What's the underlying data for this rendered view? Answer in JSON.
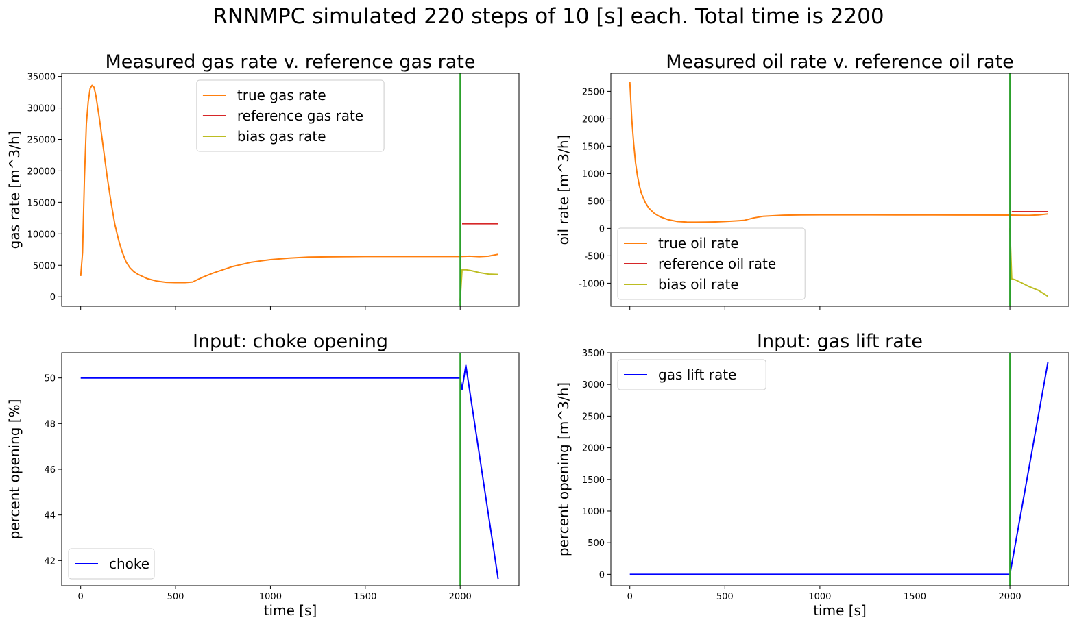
{
  "suptitle": "RNNMPC simulated 220 steps of 10 [s] each. Total time is 2200",
  "colors": {
    "true": "#ff7f0e",
    "reference": "#d62728",
    "bias": "#bcbd22",
    "input": "#0000ff",
    "marker": "#2ca02c"
  },
  "chart_data": [
    {
      "type": "line",
      "title": "Measured gas rate v. reference gas rate",
      "xlabel": "",
      "ylabel": "gas rate [m^3/h]",
      "xlim": [
        -100,
        2310
      ],
      "ylim": [
        -1500,
        35500
      ],
      "xticks": [
        0,
        500,
        1000,
        1500,
        2000
      ],
      "show_xticklabels": false,
      "yticks": [
        0,
        5000,
        10000,
        15000,
        20000,
        25000,
        30000,
        35000
      ],
      "vline": 2000,
      "legend_position": "top-center",
      "series": [
        {
          "name": "true gas rate",
          "color_key": "true",
          "x": [
            0,
            10,
            20,
            30,
            40,
            50,
            60,
            70,
            80,
            90,
            100,
            120,
            140,
            160,
            180,
            200,
            220,
            240,
            260,
            280,
            300,
            350,
            400,
            450,
            500,
            550,
            590,
            620,
            650,
            700,
            800,
            900,
            1000,
            1100,
            1200,
            1300,
            1400,
            1500,
            1600,
            1700,
            1800,
            1900,
            2000,
            2050,
            2100,
            2150,
            2200
          ],
          "y": [
            3300,
            7000,
            19000,
            27500,
            31000,
            33100,
            33600,
            33300,
            32000,
            30000,
            28000,
            23500,
            19000,
            15000,
            11500,
            9000,
            7000,
            5500,
            4600,
            4000,
            3600,
            2900,
            2500,
            2300,
            2250,
            2250,
            2350,
            2800,
            3200,
            3800,
            4800,
            5500,
            5900,
            6150,
            6300,
            6350,
            6380,
            6400,
            6400,
            6400,
            6400,
            6400,
            6400,
            6450,
            6380,
            6450,
            6750
          ]
        },
        {
          "name": "reference gas rate",
          "color_key": "reference",
          "x": [
            2010,
            2200
          ],
          "y": [
            11600,
            11600
          ]
        },
        {
          "name": "bias gas rate",
          "color_key": "bias",
          "x": [
            2000,
            2010,
            2030,
            2060,
            2100,
            2150,
            2200
          ],
          "y": [
            -600,
            4300,
            4300,
            4150,
            3850,
            3600,
            3550
          ]
        }
      ]
    },
    {
      "type": "line",
      "title": "Measured oil rate v. reference oil rate",
      "xlabel": "",
      "ylabel": "oil rate [m^3/h]",
      "xlim": [
        -100,
        2310
      ],
      "ylim": [
        -1420,
        2830
      ],
      "xticks": [
        0,
        500,
        1000,
        1500,
        2000
      ],
      "show_xticklabels": false,
      "yticks": [
        -1000,
        -500,
        0,
        500,
        1000,
        1500,
        2000,
        2500
      ],
      "vline": 2000,
      "legend_position": "bottom-left",
      "series": [
        {
          "name": "true oil rate",
          "color_key": "true",
          "x": [
            0,
            10,
            20,
            30,
            40,
            50,
            60,
            80,
            100,
            130,
            160,
            200,
            250,
            300,
            350,
            400,
            450,
            500,
            550,
            600,
            650,
            700,
            800,
            900,
            1000,
            1200,
            1400,
            1600,
            1800,
            2000,
            2050,
            2100,
            2150,
            2200
          ],
          "y": [
            2680,
            2000,
            1550,
            1200,
            960,
            780,
            650,
            480,
            370,
            270,
            210,
            160,
            125,
            115,
            112,
            114,
            118,
            125,
            135,
            145,
            190,
            220,
            240,
            245,
            248,
            248,
            246,
            245,
            244,
            243,
            240,
            238,
            245,
            265
          ]
        },
        {
          "name": "reference oil rate",
          "color_key": "reference",
          "x": [
            2010,
            2200
          ],
          "y": [
            305,
            305
          ]
        },
        {
          "name": "bias oil rate",
          "color_key": "bias",
          "x": [
            2000,
            2010,
            2030,
            2060,
            2100,
            2150,
            2200
          ],
          "y": [
            0,
            -920,
            -940,
            -990,
            -1060,
            -1130,
            -1240
          ]
        }
      ]
    },
    {
      "type": "line",
      "title": "Input: choke opening",
      "xlabel": "time [s]",
      "ylabel": "percent opening [%]",
      "xlim": [
        -100,
        2310
      ],
      "ylim": [
        40.9,
        51.1
      ],
      "xticks": [
        0,
        500,
        1000,
        1500,
        2000
      ],
      "show_xticklabels": true,
      "yticks": [
        42,
        44,
        46,
        48,
        50
      ],
      "vline": 2000,
      "legend_position": "bottom-left",
      "series": [
        {
          "name": "choke",
          "color_key": "input",
          "x": [
            0,
            1990,
            2000,
            2010,
            2030,
            2200
          ],
          "y": [
            50,
            50,
            50,
            49.5,
            50.55,
            41.2
          ]
        }
      ]
    },
    {
      "type": "line",
      "title": "Input: gas lift rate",
      "xlabel": "time [s]",
      "ylabel": "percent opening [m^3/h]",
      "xlim": [
        -100,
        2310
      ],
      "ylim": [
        -180,
        3500
      ],
      "xticks": [
        0,
        500,
        1000,
        1500,
        2000
      ],
      "show_xticklabels": true,
      "yticks": [
        0,
        500,
        1000,
        1500,
        2000,
        2500,
        3000,
        3500
      ],
      "vline": 2000,
      "legend_position": "top-left",
      "series": [
        {
          "name": "gas lift rate",
          "color_key": "input",
          "x": [
            0,
            2000,
            2200
          ],
          "y": [
            0,
            0,
            3350
          ]
        }
      ]
    }
  ]
}
